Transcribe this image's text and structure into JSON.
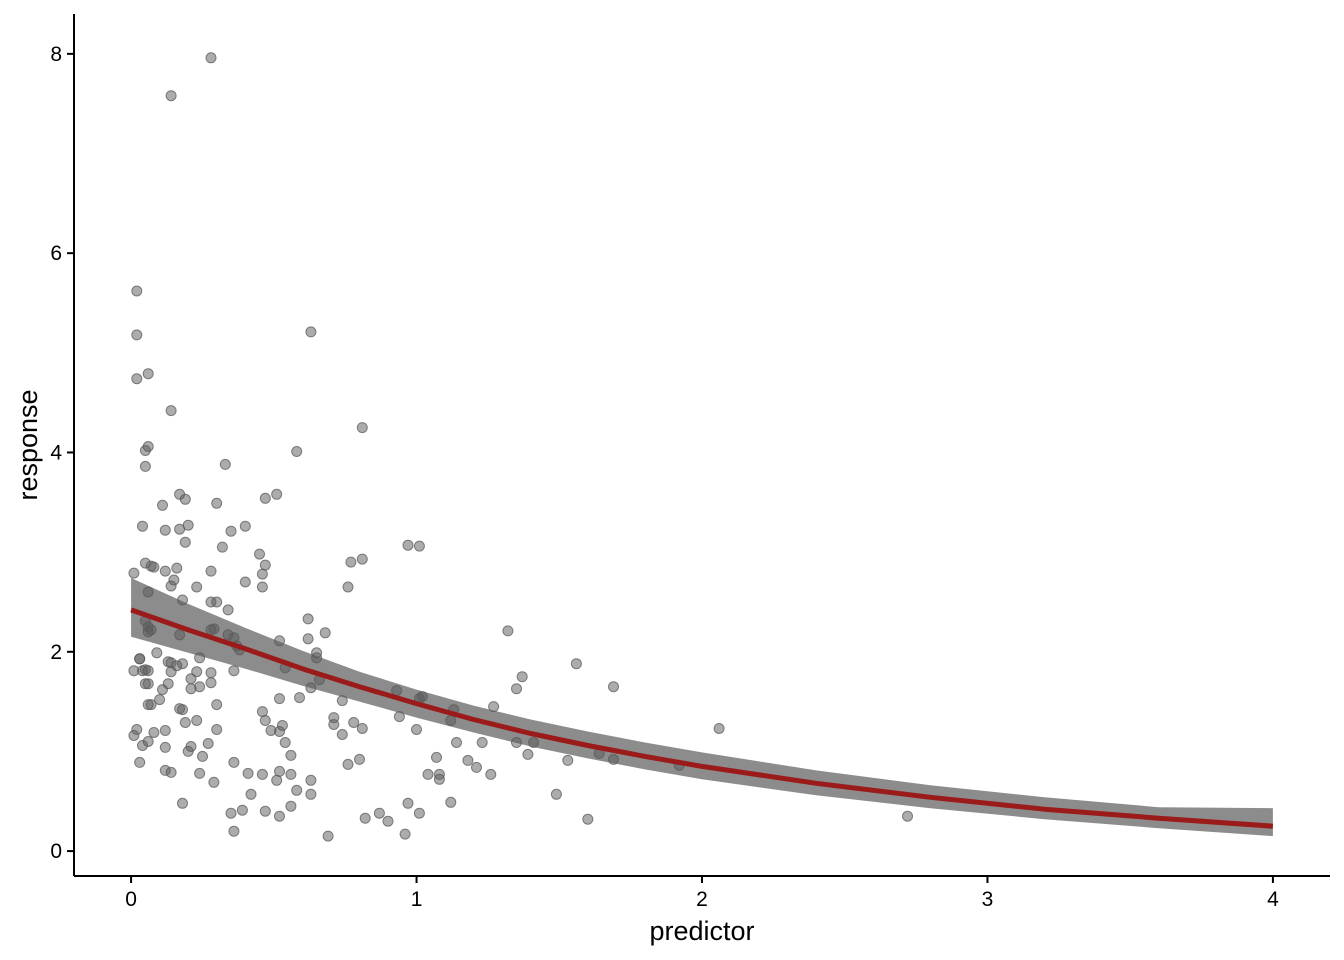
{
  "chart_data": {
    "type": "scatter",
    "title": "",
    "xlabel": "predictor",
    "ylabel": "response",
    "xlim": [
      -0.2,
      4.2
    ],
    "ylim": [
      -0.25,
      8.4
    ],
    "x_ticks": [
      0,
      1,
      2,
      3,
      4
    ],
    "x_tick_labels": [
      "0",
      "1",
      "2",
      "3",
      "4"
    ],
    "y_ticks": [
      0,
      2,
      4,
      6,
      8
    ],
    "y_tick_labels": [
      "0",
      "2",
      "4",
      "6",
      "8"
    ],
    "grid": false,
    "legend": "none",
    "colors": {
      "points": "#595959",
      "fit_line": "#9b1b1b",
      "band": "#8c8c8c"
    },
    "points": [
      [
        0.28,
        7.96
      ],
      [
        0.14,
        7.58
      ],
      [
        0.02,
        5.62
      ],
      [
        0.02,
        5.18
      ],
      [
        0.63,
        5.21
      ],
      [
        0.06,
        4.79
      ],
      [
        0.02,
        4.74
      ],
      [
        0.14,
        4.42
      ],
      [
        0.81,
        4.25
      ],
      [
        0.06,
        4.06
      ],
      [
        0.05,
        4.02
      ],
      [
        0.58,
        4.01
      ],
      [
        0.05,
        3.86
      ],
      [
        0.33,
        3.88
      ],
      [
        0.17,
        3.58
      ],
      [
        0.19,
        3.53
      ],
      [
        0.47,
        3.54
      ],
      [
        0.51,
        3.58
      ],
      [
        0.11,
        3.47
      ],
      [
        0.3,
        3.49
      ],
      [
        0.04,
        3.26
      ],
      [
        0.12,
        3.22
      ],
      [
        0.17,
        3.23
      ],
      [
        0.2,
        3.27
      ],
      [
        0.35,
        3.21
      ],
      [
        0.4,
        3.26
      ],
      [
        0.19,
        3.1
      ],
      [
        0.32,
        3.05
      ],
      [
        0.97,
        3.07
      ],
      [
        1.01,
        3.06
      ],
      [
        0.45,
        2.98
      ],
      [
        0.77,
        2.9
      ],
      [
        0.81,
        2.93
      ],
      [
        0.05,
        2.89
      ],
      [
        0.07,
        2.86
      ],
      [
        0.08,
        2.85
      ],
      [
        0.12,
        2.81
      ],
      [
        0.16,
        2.84
      ],
      [
        0.28,
        2.81
      ],
      [
        0.46,
        2.78
      ],
      [
        0.47,
        2.87
      ],
      [
        0.01,
        2.79
      ],
      [
        0.15,
        2.72
      ],
      [
        0.14,
        2.66
      ],
      [
        0.23,
        2.65
      ],
      [
        0.4,
        2.7
      ],
      [
        0.46,
        2.65
      ],
      [
        0.76,
        2.65
      ],
      [
        0.06,
        2.6
      ],
      [
        0.18,
        2.52
      ],
      [
        0.28,
        2.5
      ],
      [
        0.3,
        2.5
      ],
      [
        0.34,
        2.42
      ],
      [
        0.05,
        2.31
      ],
      [
        0.06,
        2.25
      ],
      [
        0.06,
        2.2
      ],
      [
        0.07,
        2.22
      ],
      [
        0.17,
        2.17
      ],
      [
        0.28,
        2.22
      ],
      [
        0.29,
        2.23
      ],
      [
        0.34,
        2.17
      ],
      [
        0.36,
        2.14
      ],
      [
        0.37,
        2.06
      ],
      [
        0.38,
        2.02
      ],
      [
        0.62,
        2.33
      ],
      [
        0.68,
        2.19
      ],
      [
        1.32,
        2.21
      ],
      [
        0.52,
        2.11
      ],
      [
        0.62,
        2.13
      ],
      [
        0.03,
        1.93
      ],
      [
        0.03,
        1.93
      ],
      [
        0.09,
        1.99
      ],
      [
        0.13,
        1.9
      ],
      [
        0.14,
        1.89
      ],
      [
        0.16,
        1.86
      ],
      [
        0.18,
        1.88
      ],
      [
        0.24,
        1.94
      ],
      [
        0.36,
        1.81
      ],
      [
        0.54,
        1.84
      ],
      [
        0.65,
        1.94
      ],
      [
        0.65,
        1.99
      ],
      [
        0.01,
        1.81
      ],
      [
        0.04,
        1.81
      ],
      [
        0.05,
        1.82
      ],
      [
        0.06,
        1.81
      ],
      [
        0.14,
        1.8
      ],
      [
        0.21,
        1.73
      ],
      [
        0.23,
        1.8
      ],
      [
        0.28,
        1.79
      ],
      [
        1.56,
        1.88
      ],
      [
        0.05,
        1.68
      ],
      [
        0.06,
        1.68
      ],
      [
        0.13,
        1.68
      ],
      [
        0.11,
        1.62
      ],
      [
        0.21,
        1.63
      ],
      [
        0.24,
        1.65
      ],
      [
        0.28,
        1.69
      ],
      [
        0.52,
        1.53
      ],
      [
        0.59,
        1.54
      ],
      [
        0.63,
        1.64
      ],
      [
        0.66,
        1.72
      ],
      [
        0.74,
        1.51
      ],
      [
        1.37,
        1.75
      ],
      [
        1.35,
        1.63
      ],
      [
        1.69,
        1.65
      ],
      [
        0.06,
        1.47
      ],
      [
        0.07,
        1.47
      ],
      [
        0.1,
        1.52
      ],
      [
        0.17,
        1.43
      ],
      [
        0.18,
        1.42
      ],
      [
        0.3,
        1.47
      ],
      [
        0.46,
        1.4
      ],
      [
        0.71,
        1.34
      ],
      [
        0.93,
        1.61
      ],
      [
        0.94,
        1.35
      ],
      [
        1.01,
        1.53
      ],
      [
        1.02,
        1.55
      ],
      [
        1.12,
        1.31
      ],
      [
        1.13,
        1.42
      ],
      [
        1.27,
        1.45
      ],
      [
        0.19,
        1.29
      ],
      [
        0.23,
        1.31
      ],
      [
        0.3,
        1.22
      ],
      [
        0.47,
        1.31
      ],
      [
        0.49,
        1.21
      ],
      [
        0.52,
        1.2
      ],
      [
        0.53,
        1.26
      ],
      [
        0.71,
        1.27
      ],
      [
        0.78,
        1.29
      ],
      [
        0.81,
        1.23
      ],
      [
        0.74,
        1.17
      ],
      [
        1.0,
        1.22
      ],
      [
        2.06,
        1.23
      ],
      [
        0.01,
        1.16
      ],
      [
        0.02,
        1.22
      ],
      [
        0.06,
        1.1
      ],
      [
        0.08,
        1.19
      ],
      [
        0.12,
        1.21
      ],
      [
        0.04,
        1.06
      ],
      [
        0.12,
        1.04
      ],
      [
        0.2,
        1.0
      ],
      [
        0.21,
        1.05
      ],
      [
        0.27,
        1.08
      ],
      [
        0.54,
        1.09
      ],
      [
        1.14,
        1.09
      ],
      [
        1.23,
        1.09
      ],
      [
        1.35,
        1.09
      ],
      [
        1.39,
        0.97
      ],
      [
        1.41,
        1.09
      ],
      [
        0.03,
        0.89
      ],
      [
        0.12,
        0.81
      ],
      [
        0.14,
        0.79
      ],
      [
        0.25,
        0.95
      ],
      [
        0.36,
        0.89
      ],
      [
        0.56,
        0.96
      ],
      [
        0.76,
        0.87
      ],
      [
        0.8,
        0.92
      ],
      [
        1.07,
        0.94
      ],
      [
        1.18,
        0.91
      ],
      [
        1.21,
        0.84
      ],
      [
        1.53,
        0.91
      ],
      [
        1.64,
        0.98
      ],
      [
        1.69,
        0.92
      ],
      [
        1.92,
        0.86
      ],
      [
        0.24,
        0.78
      ],
      [
        0.29,
        0.69
      ],
      [
        0.41,
        0.78
      ],
      [
        0.46,
        0.77
      ],
      [
        0.51,
        0.71
      ],
      [
        0.52,
        0.8
      ],
      [
        0.56,
        0.77
      ],
      [
        0.63,
        0.71
      ],
      [
        1.04,
        0.77
      ],
      [
        1.08,
        0.77
      ],
      [
        1.08,
        0.72
      ],
      [
        1.26,
        0.77
      ],
      [
        0.18,
        0.48
      ],
      [
        0.42,
        0.57
      ],
      [
        0.47,
        0.4
      ],
      [
        0.56,
        0.45
      ],
      [
        0.58,
        0.61
      ],
      [
        0.63,
        0.57
      ],
      [
        0.97,
        0.48
      ],
      [
        1.01,
        0.38
      ],
      [
        1.12,
        0.49
      ],
      [
        1.49,
        0.57
      ],
      [
        0.35,
        0.38
      ],
      [
        0.39,
        0.41
      ],
      [
        0.52,
        0.35
      ],
      [
        0.82,
        0.33
      ],
      [
        0.87,
        0.38
      ],
      [
        0.9,
        0.3
      ],
      [
        1.6,
        0.32
      ],
      [
        2.72,
        0.35
      ],
      [
        0.36,
        0.2
      ],
      [
        0.69,
        0.15
      ],
      [
        0.96,
        0.17
      ]
    ],
    "fit": {
      "x": [
        0,
        0.2,
        0.4,
        0.6,
        0.8,
        1.0,
        1.2,
        1.4,
        1.6,
        1.8,
        2.0,
        2.4,
        2.8,
        3.2,
        3.6,
        4.0
      ],
      "y": [
        2.42,
        2.22,
        2.03,
        1.83,
        1.65,
        1.48,
        1.32,
        1.18,
        1.06,
        0.95,
        0.85,
        0.68,
        0.54,
        0.42,
        0.33,
        0.25
      ],
      "lower": [
        2.15,
        1.99,
        1.83,
        1.66,
        1.5,
        1.34,
        1.19,
        1.05,
        0.93,
        0.82,
        0.72,
        0.56,
        0.43,
        0.32,
        0.23,
        0.15
      ],
      "upper": [
        2.74,
        2.48,
        2.24,
        2.01,
        1.8,
        1.62,
        1.46,
        1.32,
        1.2,
        1.09,
        0.99,
        0.81,
        0.66,
        0.54,
        0.44,
        0.43
      ]
    }
  }
}
